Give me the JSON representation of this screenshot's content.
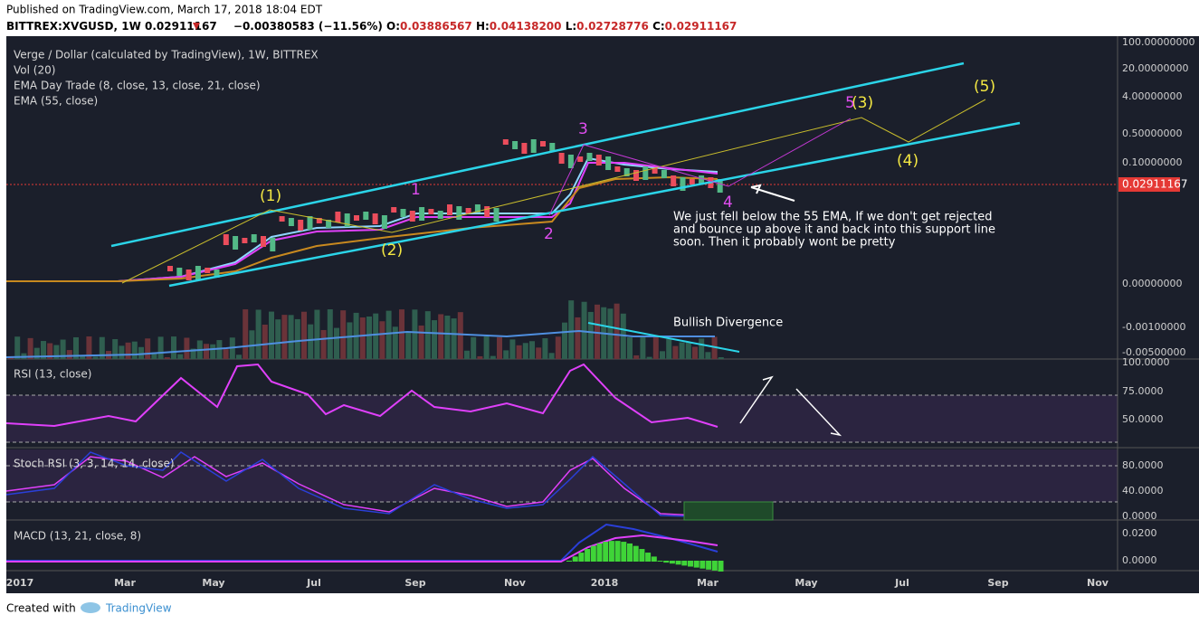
{
  "header": {
    "published": "Published on TradingView.com, March 17, 2018 18:04 EDT",
    "symbol": "BITTREX:XVGUSD, 1W",
    "price": "0.02911167",
    "change": "−0.00380583 (−11.56%)",
    "ohlc": [
      {
        "label": "O:",
        "value": "0.03886567"
      },
      {
        "label": "H:",
        "value": "0.04138200"
      },
      {
        "label": "L:",
        "value": "0.02728776"
      },
      {
        "label": "C:",
        "value": "0.02911167"
      }
    ]
  },
  "price_pane": {
    "legend": [
      "Verge / Dollar (calculated by TradingView), 1W, BITTREX",
      "Vol (20)",
      "EMA Day Trade (8, close, 13, close, 21, close)",
      "EMA (55, close)"
    ],
    "axis_labels": [
      "100.00000000",
      "20.00000000",
      "4.00000000",
      "0.50000000",
      "0.10000000",
      "0.00000000",
      "-0.00100000",
      "-0.00500000"
    ],
    "last_price": "0.02911167",
    "wave_labels": [
      "(1)",
      "(2)",
      "(3)",
      "(4)",
      "(5)"
    ],
    "count_labels": [
      "1",
      "2",
      "3",
      "4",
      "5"
    ],
    "comment": [
      "We just fell below the 55 EMA, If we don't get rejected",
      "and bounce up above it and back into this support line",
      "soon. Then it probably wont be pretty"
    ],
    "divergence": "Bullish Divergence"
  },
  "rsi_pane": {
    "legend": "RSI (13, close)",
    "axis_labels": [
      "100.0000",
      "75.0000",
      "50.0000"
    ]
  },
  "stoch_pane": {
    "legend": "Stoch RSI (3, 3, 14, 14, close)",
    "axis_labels": [
      "80.0000",
      "40.0000",
      "0.0000"
    ]
  },
  "macd_pane": {
    "legend": "MACD (13, 21, close, 8)",
    "axis_labels": [
      "0.0200",
      "0.0000"
    ]
  },
  "x_axis": [
    "2017",
    "Mar",
    "May",
    "Jul",
    "Sep",
    "Nov",
    "2018",
    "Mar",
    "May",
    "Jul",
    "Sep",
    "Nov"
  ],
  "footer": {
    "created": "Created with",
    "brand": "TradingView"
  }
}
